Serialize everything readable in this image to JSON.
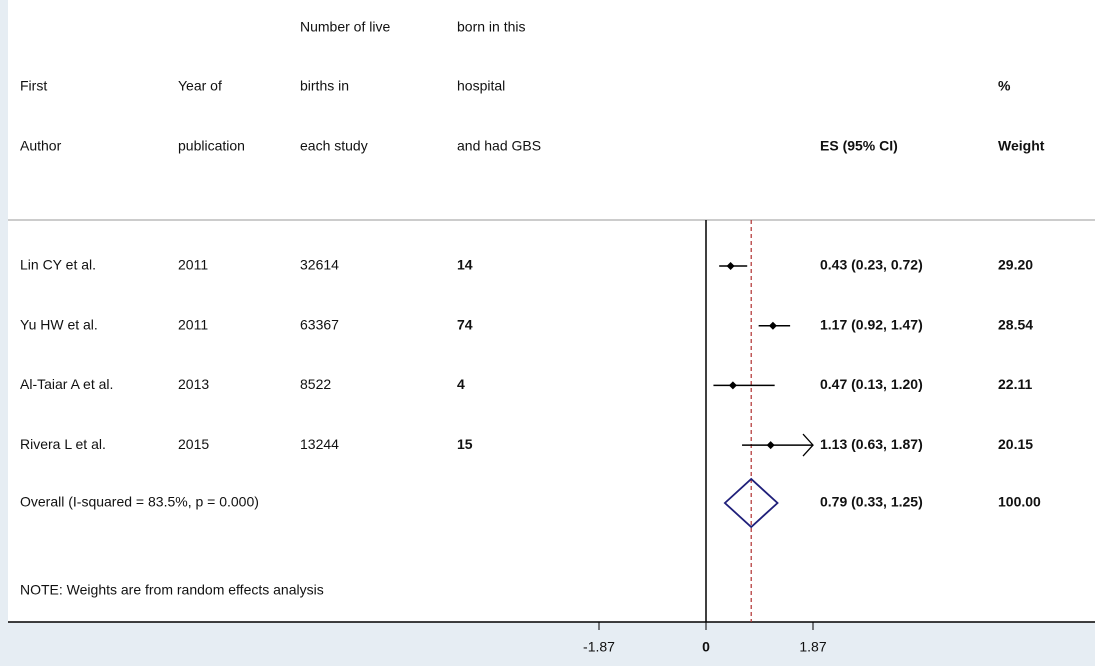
{
  "header": {
    "first": [
      "First",
      "Author"
    ],
    "year": [
      "Year of",
      "publication"
    ],
    "births": [
      "Number of live",
      "births in",
      "each study"
    ],
    "cases": [
      "born in this",
      "hospital",
      "and had GBS"
    ],
    "es": "ES (95% CI)",
    "weight": [
      "%",
      "Weight"
    ]
  },
  "chart_data": {
    "type": "forest",
    "studies": [
      "Lin CY et al.",
      "Yu HW et al.",
      "Al-Taiar A et al.",
      "Rivera L et al."
    ],
    "years": [
      2011,
      2011,
      2013,
      2015
    ],
    "births": [
      32614,
      63367,
      8522,
      13244
    ],
    "cases": [
      14,
      74,
      4,
      15
    ],
    "values": [
      0.43,
      1.17,
      0.47,
      1.13
    ],
    "ci_low": [
      0.23,
      0.92,
      0.13,
      0.63
    ],
    "ci_high": [
      0.72,
      1.47,
      1.2,
      1.87
    ],
    "value_labels": [
      "0.43 (0.23, 0.72)",
      "1.17 (0.92, 1.47)",
      "0.47 (0.13, 1.20)",
      "1.13 (0.63, 1.87)"
    ],
    "weights": [
      "29.20",
      "28.54",
      "22.11",
      "20.15"
    ],
    "overall": {
      "label": "Overall  (I-squared = 83.5%, p = 0.000)",
      "value": 0.79,
      "ci_low": 0.33,
      "ci_high": 1.25,
      "value_label": "0.79 (0.33, 1.25)",
      "weight": "100.00"
    },
    "note": "NOTE: Weights are from random effects analysis",
    "xlim": [
      -1.87,
      1.87
    ],
    "xticks": [
      -1.87,
      0,
      1.87
    ],
    "color": "#000000",
    "diamond_color": "#1f1f7a",
    "ref_color": "#b03030"
  }
}
